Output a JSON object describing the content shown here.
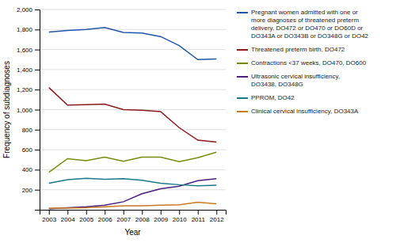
{
  "chart_data": {
    "type": "line",
    "x": [
      2003,
      2004,
      2005,
      2006,
      2007,
      2008,
      2009,
      2010,
      2011,
      2012
    ],
    "series": [
      {
        "name": "Pregnant women admitted with one or\nmore diagnoses of threatened preterm\ndelivery, DO472 or DO470 or DO60D or\nDO343A or DO343B or DO348G or DO42",
        "color": "#2255aa",
        "values": [
          1775,
          1790,
          1800,
          1820,
          1770,
          1765,
          1730,
          1640,
          1500,
          1505
        ]
      },
      {
        "name": "Threatened preterm birth, DO472",
        "color": "#8b1a1a",
        "values": [
          1220,
          1045,
          1050,
          1055,
          1000,
          995,
          980,
          820,
          695,
          675
        ]
      },
      {
        "name": "Contractions <37 weeks, DO470, DO600",
        "color": "#7a8a10",
        "values": [
          375,
          510,
          490,
          525,
          485,
          525,
          525,
          480,
          520,
          575
        ]
      },
      {
        "name": "Ultrasonic cervical insufficiency,\nDO3438, DO348G",
        "color": "#4a2080",
        "values": [
          10,
          20,
          30,
          45,
          80,
          160,
          210,
          235,
          290,
          310
        ]
      },
      {
        "name": "PPROM, DO42",
        "color": "#1a7a8a",
        "values": [
          265,
          300,
          315,
          305,
          310,
          295,
          265,
          250,
          240,
          245
        ]
      },
      {
        "name": "Clinical cervical insufficiency, DO343A",
        "color": "#c87a20",
        "values": [
          15,
          15,
          20,
          30,
          40,
          40,
          45,
          50,
          75,
          60
        ]
      }
    ],
    "x_label": "Year",
    "y_label": "Frequency of subdiagnoses",
    "xlim": [
      2002.5,
      2012.5
    ],
    "xticks": [
      2003,
      2004,
      2005,
      2006,
      2007,
      2008,
      2009,
      2010,
      2011,
      2012
    ],
    "ylim": [
      0,
      2000
    ],
    "yticks": [
      200,
      400,
      600,
      800,
      {
        "value": 1000,
        "label": "1,000"
      },
      {
        "value": 1200,
        "label": "1,200"
      },
      {
        "value": 1400,
        "label": "1,400"
      },
      {
        "value": 1600,
        "label": "1,600"
      },
      {
        "value": 1800,
        "label": "1,800"
      },
      {
        "value": 2000,
        "label": "2,000"
      }
    ],
    "grid": true,
    "legend": "right"
  }
}
